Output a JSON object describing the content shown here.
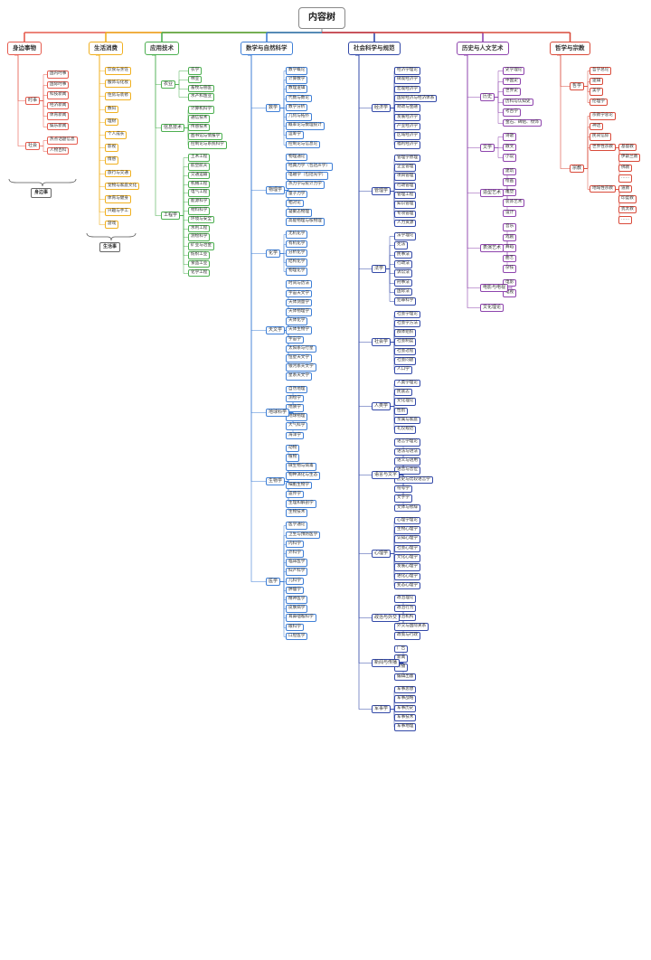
{
  "root": "内容树",
  "categories": [
    {
      "label": "身边事物",
      "color": "#e65c4f",
      "children": [
        {
          "label": "时事",
          "children": [
            {
              "label": "国内时事"
            },
            {
              "label": "国际时事"
            },
            {
              "label": "科技新闻"
            },
            {
              "label": "经济新闻"
            },
            {
              "label": "体育新闻"
            },
            {
              "label": "娱乐新闻"
            }
          ]
        },
        {
          "label": "社会",
          "children": [
            {
              "label": "热点话题信息"
            },
            {
              "label": "人物百科"
            }
          ]
        }
      ],
      "note": "身边事"
    },
    {
      "label": "生活消费",
      "color": "#f0b020",
      "children": [
        {
          "label": "饮食与烹饪"
        },
        {
          "label": "服饰与化妆"
        },
        {
          "label": "住房与装修"
        },
        {
          "label": "数码"
        },
        {
          "label": "理财"
        },
        {
          "label": "个人成长"
        },
        {
          "label": "影视"
        },
        {
          "label": "情感"
        },
        {
          "label": "旅行与交通"
        },
        {
          "label": "宠物与家庭文化"
        },
        {
          "label": "体育与健身"
        },
        {
          "label": "兴趣与手工"
        },
        {
          "label": "游戏"
        }
      ],
      "note": "生活事"
    },
    {
      "label": "应用技术",
      "color": "#4caf50",
      "children": [
        {
          "label": "农业",
          "children": [
            {
              "label": "农学"
            },
            {
              "label": "林业"
            },
            {
              "label": "畜牧与兽医"
            },
            {
              "label": "水产和渔业"
            }
          ]
        },
        {
          "label": "信息技术",
          "children": [
            {
              "label": "计算机科学"
            },
            {
              "label": "通信技术"
            },
            {
              "label": "传感技术"
            },
            {
              "label": "图书馆与情报学"
            },
            {
              "label": "控制论与系统科学"
            }
          ]
        },
        {
          "label": "工程学",
          "children": [
            {
              "label": "土木工程"
            },
            {
              "label": "航空航天"
            },
            {
              "label": "交通运输"
            },
            {
              "label": "机械工程"
            },
            {
              "label": "电气工程"
            },
            {
              "label": "能源科学"
            },
            {
              "label": "材料科学"
            },
            {
              "label": "环境与安全"
            },
            {
              "label": "水利工程"
            },
            {
              "label": "测绘科学"
            },
            {
              "label": "矿业与冶金"
            },
            {
              "label": "纺织工业"
            },
            {
              "label": "食品工业"
            },
            {
              "label": "化学工程"
            }
          ]
        }
      ]
    },
    {
      "label": "数学与自然科学",
      "color": "#3f7fd6",
      "children": [
        {
          "label": "数学",
          "children": [
            {
              "label": "数学概论"
            },
            {
              "label": "计算数学"
            },
            {
              "label": "数理逻辑"
            },
            {
              "label": "代数与数论"
            },
            {
              "label": "数学分析"
            },
            {
              "label": "几何与拓扑"
            },
            {
              "label": "概率论与数理统计"
            },
            {
              "label": "运筹学"
            },
            {
              "label": "控制论与信息论"
            }
          ]
        },
        {
          "label": "物理学",
          "children": [
            {
              "label": "物理通论"
            },
            {
              "label": "经典力学（包括声学）"
            },
            {
              "label": "电磁学（包括光学）"
            },
            {
              "label": "热力学与统计力学"
            },
            {
              "label": "量子力学"
            },
            {
              "label": "相对论"
            },
            {
              "label": "凝聚态物理"
            },
            {
              "label": "高能物理与核物理"
            }
          ]
        },
        {
          "label": "化学",
          "children": [
            {
              "label": "无机化学"
            },
            {
              "label": "有机化学"
            },
            {
              "label": "分析化学"
            },
            {
              "label": "结构化学"
            },
            {
              "label": "物理化学"
            }
          ]
        },
        {
          "label": "天文学",
          "children": [
            {
              "label": "时间与历法"
            },
            {
              "label": "宇宙天文学"
            },
            {
              "label": "天体测量学"
            },
            {
              "label": "天体物理学"
            },
            {
              "label": "天体化学"
            },
            {
              "label": "天体生物学"
            },
            {
              "label": "宇宙学"
            },
            {
              "label": "太阳系与行星"
            },
            {
              "label": "恒星天文学"
            },
            {
              "label": "银河系天文学"
            },
            {
              "label": "星系天文学"
            }
          ]
        },
        {
          "label": "地球科学",
          "children": [
            {
              "label": "自然地理"
            },
            {
              "label": "测绘学"
            },
            {
              "label": "地质学"
            },
            {
              "label": "地球物理"
            },
            {
              "label": "大气科学"
            },
            {
              "label": "海洋学"
            }
          ]
        },
        {
          "label": "生物学",
          "children": [
            {
              "label": "动物"
            },
            {
              "label": "植物"
            },
            {
              "label": "微生物与病毒"
            },
            {
              "label": "物种演化与生态"
            },
            {
              "label": "细胞生物学"
            },
            {
              "label": "遗传学"
            },
            {
              "label": "生理和解剖学"
            },
            {
              "label": "生物技术"
            }
          ]
        },
        {
          "label": "医学",
          "children": [
            {
              "label": "医学通论"
            },
            {
              "label": "卫生与预防医学"
            },
            {
              "label": "内科学"
            },
            {
              "label": "外科学"
            },
            {
              "label": "临床医学"
            },
            {
              "label": "妇产科学"
            },
            {
              "label": "儿科学"
            },
            {
              "label": "肿瘤学"
            },
            {
              "label": "精神医学"
            },
            {
              "label": "皮肤病学"
            },
            {
              "label": "耳鼻咽喉科学"
            },
            {
              "label": "眼科学"
            },
            {
              "label": "口腔医学"
            }
          ]
        }
      ]
    },
    {
      "label": "社会科学与规范",
      "color": "#3349a8",
      "children": [
        {
          "label": "经济学",
          "children": [
            {
              "label": "经济学理论"
            },
            {
              "label": "微观经济学"
            },
            {
              "label": "宏观经济学"
            },
            {
              "label": "国际经济与经济体系"
            },
            {
              "label": "财政与金融"
            },
            {
              "label": "发展经济学"
            },
            {
              "label": "产业经济学"
            },
            {
              "label": "区域经济学"
            },
            {
              "label": "福利经济学"
            }
          ]
        },
        {
          "label": "管理学",
          "children": [
            {
              "label": "管理学原理"
            },
            {
              "label": "企业管理"
            },
            {
              "label": "项目管理"
            },
            {
              "label": "行政管理"
            },
            {
              "label": "管理工程"
            },
            {
              "label": "知识管理"
            },
            {
              "label": "专项管理"
            },
            {
              "label": "人力资源"
            }
          ]
        },
        {
          "label": "法学",
          "children": [
            {
              "label": "法学理论"
            },
            {
              "label": "宪法"
            },
            {
              "label": "民事法"
            },
            {
              "label": "行政法"
            },
            {
              "label": "诉讼法"
            },
            {
              "label": "刑事法"
            },
            {
              "label": "国际法"
            },
            {
              "label": "犯罪科学"
            }
          ]
        },
        {
          "label": "社会学",
          "children": [
            {
              "label": "社会学理论"
            },
            {
              "label": "社会学方法"
            },
            {
              "label": "群体组织"
            },
            {
              "label": "社会制度"
            },
            {
              "label": "社会过程"
            },
            {
              "label": "社会问题"
            },
            {
              "label": "人口学"
            }
          ]
        },
        {
          "label": "人类学",
          "children": [
            {
              "label": "人类学理论"
            },
            {
              "label": "民族志"
            },
            {
              "label": "文化理论"
            },
            {
              "label": "性别"
            },
            {
              "label": "亲属与家庭"
            },
            {
              "label": "礼仪规范"
            }
          ]
        },
        {
          "label": "语言与文字",
          "children": [
            {
              "label": "语言学理论"
            },
            {
              "label": "语法与语法"
            },
            {
              "label": "语义与语用"
            },
            {
              "label": "语音与音位"
            },
            {
              "label": "历史与比较语言学"
            },
            {
              "label": "符号学"
            },
            {
              "label": "文字学"
            },
            {
              "label": "文体与修辞"
            }
          ]
        },
        {
          "label": "心理学",
          "children": [
            {
              "label": "心理学理论"
            },
            {
              "label": "生物心理学"
            },
            {
              "label": "认知心理学"
            },
            {
              "label": "社会心理学"
            },
            {
              "label": "文化心理学"
            },
            {
              "label": "发展心理学"
            },
            {
              "label": "进化心理学"
            },
            {
              "label": "变态心理学"
            }
          ]
        },
        {
          "label": "政治与外交",
          "children": [
            {
              "label": "政治理论"
            },
            {
              "label": "政治行为"
            },
            {
              "label": "政治机构"
            },
            {
              "label": "外交与国际关系"
            },
            {
              "label": "政策与行政"
            }
          ]
        },
        {
          "label": "新闻与传播",
          "children": [
            {
              "label": "广告"
            },
            {
              "label": "新闻"
            },
            {
              "label": "传播"
            },
            {
              "label": "编辑出版"
            }
          ]
        },
        {
          "label": "军事学",
          "children": [
            {
              "label": "军事思想"
            },
            {
              "label": "军事战略"
            },
            {
              "label": "军事历史"
            },
            {
              "label": "军事技术"
            },
            {
              "label": "军事地理"
            }
          ]
        }
      ]
    },
    {
      "label": "历史与人文艺术",
      "color": "#8e44ad",
      "children": [
        {
          "label": "历史",
          "children": [
            {
              "label": "史学理论"
            },
            {
              "label": "中国史"
            },
            {
              "label": "世界史"
            },
            {
              "label": "历科与认知史"
            },
            {
              "label": "考古学"
            },
            {
              "label": "金石、碑帖、纹饰"
            }
          ]
        },
        {
          "label": "文学",
          "children": [
            {
              "label": "诗歌"
            },
            {
              "label": "散文"
            },
            {
              "label": "小说"
            }
          ]
        },
        {
          "label": "造型艺术",
          "children": [
            {
              "label": "建筑"
            },
            {
              "label": "绘画"
            },
            {
              "label": "雕塑"
            },
            {
              "label": "装饰艺术"
            },
            {
              "label": "设计"
            }
          ]
        },
        {
          "label": "表演艺术",
          "children": [
            {
              "label": "音乐"
            },
            {
              "label": "戏剧"
            },
            {
              "label": "舞蹈"
            },
            {
              "label": "曲艺"
            },
            {
              "label": "杂技"
            }
          ]
        },
        {
          "label": "电影与电视",
          "children": [
            {
              "label": "电影"
            },
            {
              "label": "电视"
            }
          ]
        },
        {
          "label": "文化理论",
          "children": []
        }
      ]
    },
    {
      "label": "哲学与宗教",
      "color": "#d94a3a",
      "children": [
        {
          "label": "哲学",
          "children": [
            {
              "label": "哲学总论"
            },
            {
              "label": "逻辑"
            },
            {
              "label": "美学"
            },
            {
              "label": "伦理学"
            }
          ]
        },
        {
          "label": "宗教",
          "children": [
            {
              "label": "宗教学总论"
            },
            {
              "label": "神话"
            },
            {
              "label": "民间信仰"
            },
            {
              "label": "世界性宗教",
              "children": [
                {
                  "label": "基督教"
                },
                {
                  "label": "伊斯兰教"
                },
                {
                  "label": "佛教"
                },
                {
                  "label": "……"
                }
              ]
            },
            {
              "label": "地域性宗教",
              "children": [
                {
                  "label": "道教"
                },
                {
                  "label": "印度教"
                },
                {
                  "label": "犹太教"
                },
                {
                  "label": "……"
                }
              ]
            }
          ]
        }
      ]
    }
  ]
}
